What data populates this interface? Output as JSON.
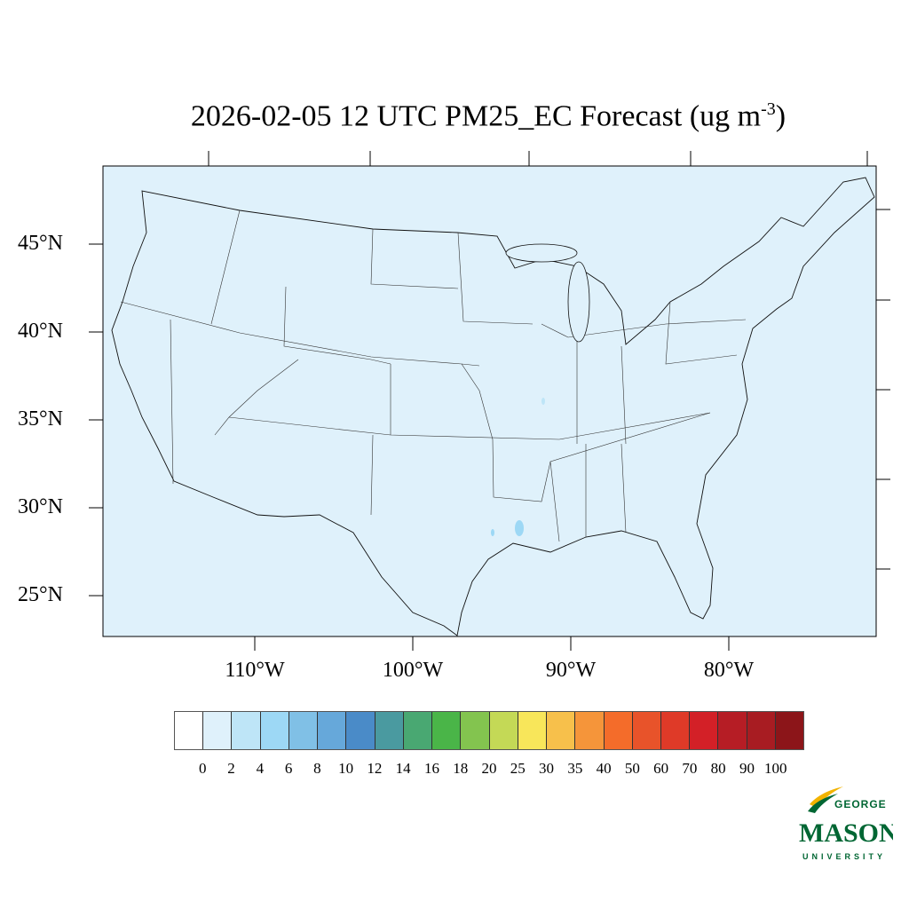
{
  "title": {
    "main": "2026-02-05 12 UTC PM25_EC Forecast (ug m",
    "exp": "-3",
    "close": ")"
  },
  "map": {
    "background_color": "#dff1fb",
    "lat_labels": [
      "45°N",
      "40°N",
      "35°N",
      "30°N",
      "25°N"
    ],
    "lon_labels": [
      "110°W",
      "100°W",
      "90°W",
      "80°W"
    ]
  },
  "colorbar": {
    "colors": [
      "#ffffff",
      "#dff1fb",
      "#bee5f7",
      "#9dd8f5",
      "#80c0e6",
      "#66a8da",
      "#4a8bc8",
      "#4a9aa0",
      "#49a872",
      "#4ab548",
      "#83c44f",
      "#c4d956",
      "#f8e65a",
      "#f7c04b",
      "#f5953a",
      "#f46c2a",
      "#e8532a",
      "#df3a28",
      "#d32027",
      "#b61d25",
      "#a81c22",
      "#8c1519"
    ],
    "labels": [
      "0",
      "2",
      "4",
      "6",
      "8",
      "10",
      "12",
      "14",
      "16",
      "18",
      "20",
      "25",
      "30",
      "35",
      "40",
      "50",
      "60",
      "70",
      "80",
      "90",
      "100"
    ]
  },
  "logo": {
    "line1": "GEORGE",
    "line2": "MASON",
    "line3": "UNIVERSITY",
    "color": "#006633",
    "accent": "#f2b300"
  }
}
